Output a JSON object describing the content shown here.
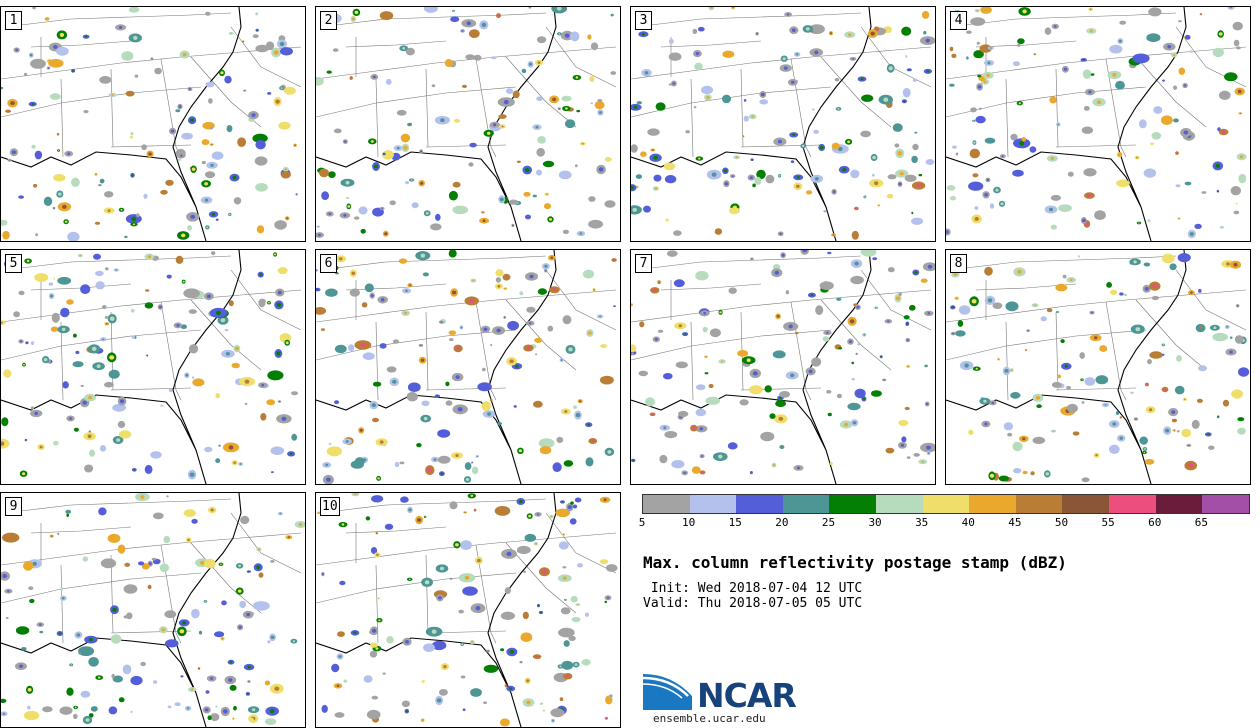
{
  "panels": [
    {
      "label": "1"
    },
    {
      "label": "2"
    },
    {
      "label": "3"
    },
    {
      "label": "4"
    },
    {
      "label": "5"
    },
    {
      "label": "6"
    },
    {
      "label": "7"
    },
    {
      "label": "8"
    },
    {
      "label": "9"
    },
    {
      "label": "10"
    }
  ],
  "colorbar": {
    "colors": [
      "#a3a3a3",
      "#b3c1ec",
      "#545ed8",
      "#4e9696",
      "#037f03",
      "#b7dbbd",
      "#efdf6a",
      "#eaa92c",
      "#ba7d35",
      "#8b5537",
      "#ec4f7d",
      "#6a1c3a",
      "#a44fa7"
    ],
    "ticks": [
      "5",
      "10",
      "15",
      "20",
      "25",
      "30",
      "35",
      "40",
      "45",
      "50",
      "55",
      "60",
      "65"
    ]
  },
  "title": "Max. column reflectivity postage stamp (dBZ)",
  "init": " Init: Wed 2018-07-04 12 UTC",
  "valid": "Valid: Thu 2018-07-05 05 UTC",
  "logo": {
    "name": "NCAR",
    "url": "ensemble.ucar.edu"
  }
}
